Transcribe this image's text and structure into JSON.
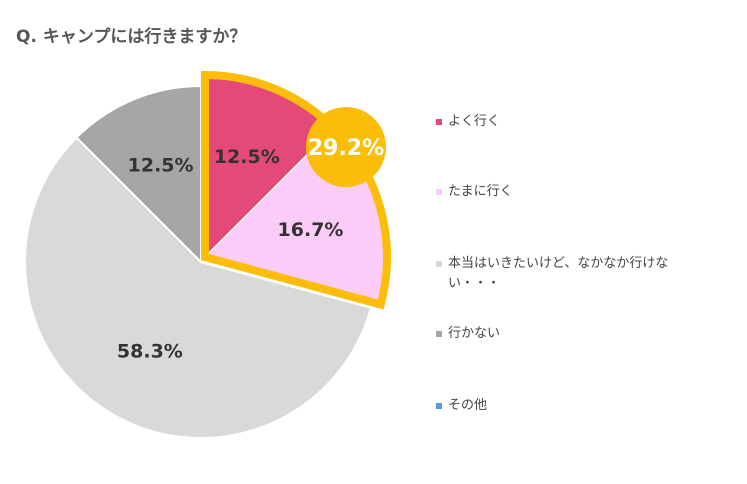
{
  "question": "Q. キャンプには行きますか？",
  "chart_data": {
    "type": "pie",
    "slices": [
      {
        "label": "よく行く",
        "value": 12.5,
        "display": "12.5%",
        "color": "#e34a78",
        "label_color": "#333333"
      },
      {
        "label": "たまに行く",
        "value": 16.7,
        "display": "16.7%",
        "color": "#fcccf8",
        "label_color": "#333333"
      },
      {
        "label": "本当はいきたいけど、なかなか行けない・・・",
        "value": 58.3,
        "display": "58.3%",
        "color": "#d9d9d9",
        "label_color": "#333333"
      },
      {
        "label": "行かない",
        "value": 12.5,
        "display": "12.5%",
        "color": "#a6a6a6",
        "label_color": "#333333"
      },
      {
        "label": "その他",
        "value": 0,
        "display": "",
        "color": "#5b9bd5",
        "label_color": "#333333"
      }
    ],
    "highlight": {
      "slices": [
        "よく行く",
        "たまに行く"
      ],
      "total_label": "29.2%",
      "border_color": "#fbbd08",
      "badge_color": "#fbbd08"
    },
    "legend_position": "right"
  }
}
